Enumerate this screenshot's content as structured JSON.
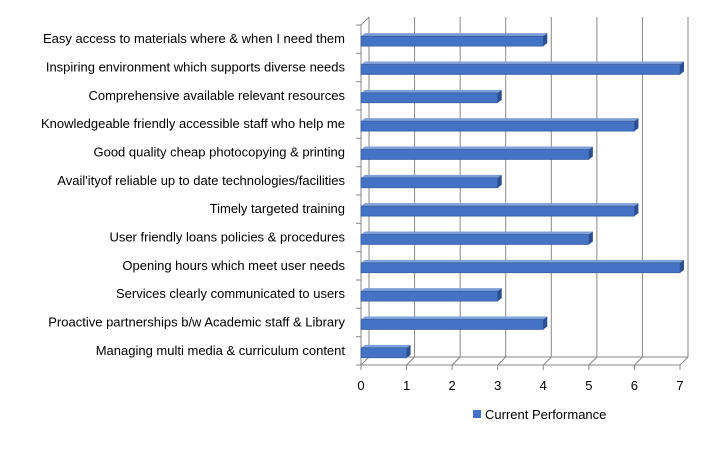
{
  "chart_data": {
    "type": "bar",
    "orientation": "horizontal",
    "three_d": true,
    "categories": [
      "Easy access to materials where & when I need them",
      "Inspiring environment which supports diverse needs",
      "Comprehensive available relevant resources",
      "Knowledgeable friendly accessible staff who help me",
      "Good quality cheap photocopying & printing",
      "Avail'ityof reliable up to date technologies/facilities",
      "Timely targeted training",
      "User friendly loans policies & procedures",
      "Opening hours which meet user needs",
      "Services clearly communicated to users",
      "Proactive partnerships b/w Academic staff & Library",
      "Managing multi media & curriculum content"
    ],
    "series": [
      {
        "name": "Current Performance",
        "values": [
          4,
          7,
          3,
          6,
          5,
          3,
          6,
          5,
          7,
          3,
          4,
          1
        ],
        "color": "#4472C4"
      }
    ],
    "xlim": [
      0,
      7
    ],
    "xticks": [
      "0",
      "1",
      "2",
      "3",
      "4",
      "5",
      "6",
      "7"
    ],
    "grid": "vertical",
    "legend": "bottom"
  }
}
